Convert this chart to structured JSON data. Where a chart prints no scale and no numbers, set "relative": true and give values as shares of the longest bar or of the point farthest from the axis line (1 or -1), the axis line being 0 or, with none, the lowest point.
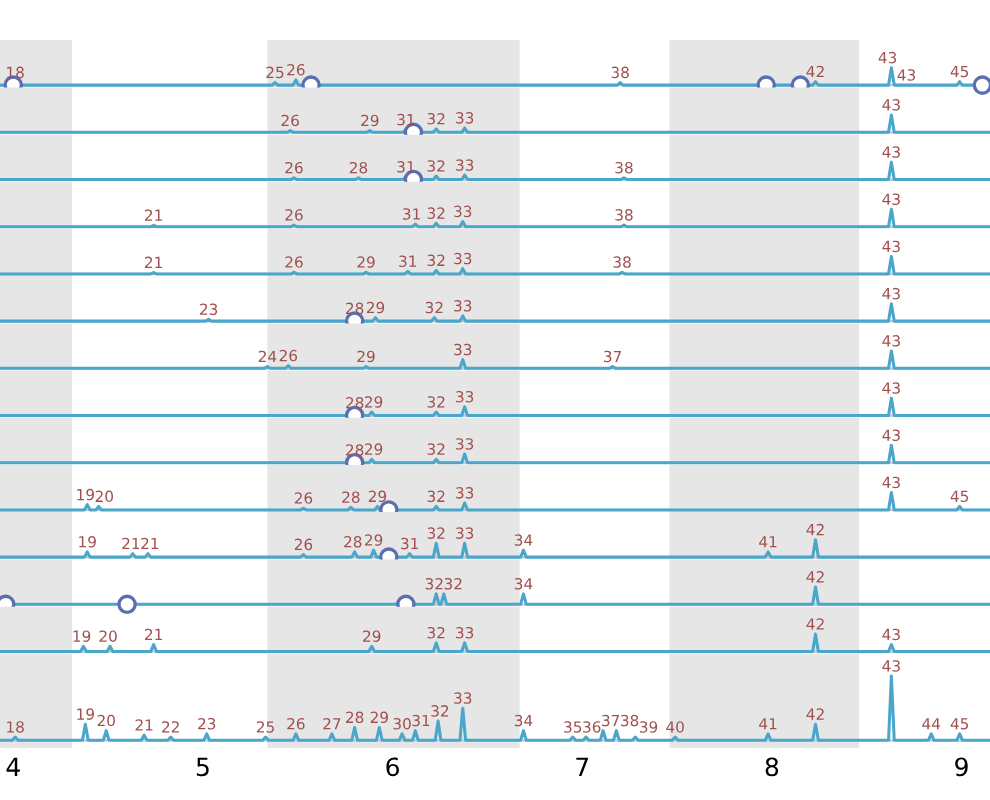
{
  "chart_data": [
    {
      "type": "line",
      "relative": true,
      "tick_labels": false,
      "xlim": [
        3.93,
        9.15
      ],
      "xticks": [
        4,
        5,
        6,
        7,
        8,
        9
      ],
      "bands": [
        {
          "axis": "x",
          "from": 3.93,
          "to": 4.31,
          "color": "#e6e6e6"
        },
        {
          "axis": "x",
          "from": 5.34,
          "to": 6.67,
          "color": "#e6e6e6"
        },
        {
          "axis": "x",
          "from": 7.46,
          "to": 8.46,
          "color": "#e6e6e6"
        }
      ],
      "series": [
        {
          "type": "line",
          "color": "#4ba6cc",
          "x": [
            3.93,
            3.985,
            4.0,
            4.015,
            5.365,
            5.38,
            5.395,
            5.475,
            5.49,
            5.505,
            7.185,
            7.2,
            7.215,
            8.215,
            8.23,
            8.245,
            8.615,
            8.63,
            8.645,
            8.975,
            8.99,
            9.005,
            9.15
          ],
          "values": [
            0,
            0,
            0.15,
            0,
            0,
            0.15,
            0,
            0,
            0.3,
            0,
            0,
            0.15,
            0,
            0,
            0.2,
            0,
            0,
            1,
            0,
            0,
            0.2,
            0,
            0
          ]
        },
        {
          "type": "scatter",
          "marker": "circle",
          "color": "#5b6eb0",
          "x": [
            4.0,
            5.57,
            7.97,
            8.15,
            9.11
          ],
          "values": [
            0,
            0,
            0,
            0,
            0
          ]
        }
      ],
      "annotations": [
        {
          "text": "18",
          "x": 4.01,
          "y": 0.15
        },
        {
          "text": "25",
          "x": 5.38,
          "y": 0.15
        },
        {
          "text": "26",
          "x": 5.49,
          "y": 0.3
        },
        {
          "text": "38",
          "x": 7.2,
          "y": 0.15
        },
        {
          "text": "42",
          "x": 8.23,
          "y": 0.2
        },
        {
          "text": "43",
          "x": 8.61,
          "y": 1
        },
        {
          "text": "43",
          "x": 8.66,
          "y": 0
        },
        {
          "text": "45",
          "x": 8.99,
          "y": 0.2
        }
      ]
    },
    {
      "type": "line",
      "relative": true,
      "tick_labels": false,
      "xlim": [
        3.93,
        9.15
      ],
      "xticks": [
        4,
        5,
        6,
        7,
        8,
        9
      ],
      "bands": [
        {
          "axis": "x",
          "from": 3.93,
          "to": 4.31,
          "color": "#e6e6e6"
        },
        {
          "axis": "x",
          "from": 5.34,
          "to": 6.67,
          "color": "#e6e6e6"
        },
        {
          "axis": "x",
          "from": 7.46,
          "to": 8.46,
          "color": "#e6e6e6"
        }
      ],
      "series": [
        {
          "type": "line",
          "color": "#4ba6cc",
          "x": [
            3.93,
            5.445,
            5.46,
            5.475,
            5.865,
            5.88,
            5.895,
            6.055,
            6.07,
            6.085,
            6.215,
            6.23,
            6.245,
            6.365,
            6.38,
            6.395,
            8.615,
            8.63,
            8.645,
            9.15
          ],
          "values": [
            0,
            0,
            0.1,
            0,
            0,
            0.1,
            0,
            0,
            0.15,
            0,
            0,
            0.2,
            0,
            0,
            0.25,
            0,
            0,
            1,
            0,
            0
          ]
        },
        {
          "type": "scatter",
          "marker": "circle",
          "color": "#5b6eb0",
          "x": [
            6.11
          ],
          "values": [
            0
          ]
        }
      ],
      "annotations": [
        {
          "text": "26",
          "x": 5.46,
          "y": 0.1
        },
        {
          "text": "29",
          "x": 5.88,
          "y": 0.1
        },
        {
          "text": "31",
          "x": 6.07,
          "y": 0.15
        },
        {
          "text": "32",
          "x": 6.23,
          "y": 0.2
        },
        {
          "text": "33",
          "x": 6.38,
          "y": 0.25
        },
        {
          "text": "43",
          "x": 8.63,
          "y": 1
        }
      ]
    },
    {
      "type": "line",
      "relative": true,
      "tick_labels": false,
      "xlim": [
        3.93,
        9.15
      ],
      "xticks": [
        4,
        5,
        6,
        7,
        8,
        9
      ],
      "bands": [
        {
          "axis": "x",
          "from": 3.93,
          "to": 4.31,
          "color": "#e6e6e6"
        },
        {
          "axis": "x",
          "from": 5.34,
          "to": 6.67,
          "color": "#e6e6e6"
        },
        {
          "axis": "x",
          "from": 7.46,
          "to": 8.46,
          "color": "#e6e6e6"
        }
      ],
      "series": [
        {
          "type": "line",
          "color": "#4ba6cc",
          "x": [
            3.93,
            5.465,
            5.48,
            5.495,
            5.805,
            5.82,
            5.835,
            6.055,
            6.07,
            6.085,
            6.215,
            6.23,
            6.245,
            6.365,
            6.38,
            6.395,
            7.205,
            7.22,
            7.235,
            8.615,
            8.63,
            8.645,
            9.15
          ],
          "values": [
            0,
            0,
            0.1,
            0,
            0,
            0.1,
            0,
            0,
            0.15,
            0,
            0,
            0.2,
            0,
            0,
            0.25,
            0,
            0,
            0.1,
            0,
            0,
            1,
            0,
            0
          ]
        },
        {
          "type": "scatter",
          "marker": "circle",
          "color": "#5b6eb0",
          "x": [
            6.11
          ],
          "values": [
            0
          ]
        }
      ],
      "annotations": [
        {
          "text": "26",
          "x": 5.48,
          "y": 0.1
        },
        {
          "text": "28",
          "x": 5.82,
          "y": 0.1
        },
        {
          "text": "31",
          "x": 6.07,
          "y": 0.15
        },
        {
          "text": "32",
          "x": 6.23,
          "y": 0.2
        },
        {
          "text": "33",
          "x": 6.38,
          "y": 0.25
        },
        {
          "text": "38",
          "x": 7.22,
          "y": 0.1
        },
        {
          "text": "43",
          "x": 8.63,
          "y": 1
        }
      ]
    },
    {
      "type": "line",
      "relative": true,
      "tick_labels": false,
      "xlim": [
        3.93,
        9.15
      ],
      "xticks": [
        4,
        5,
        6,
        7,
        8,
        9
      ],
      "bands": [
        {
          "axis": "x",
          "from": 3.93,
          "to": 4.31,
          "color": "#e6e6e6"
        },
        {
          "axis": "x",
          "from": 5.34,
          "to": 6.67,
          "color": "#e6e6e6"
        },
        {
          "axis": "x",
          "from": 7.46,
          "to": 8.46,
          "color": "#e6e6e6"
        }
      ],
      "series": [
        {
          "type": "line",
          "color": "#4ba6cc",
          "x": [
            3.93,
            4.725,
            4.74,
            4.755,
            5.465,
            5.48,
            5.495,
            6.105,
            6.12,
            6.135,
            6.215,
            6.23,
            6.245,
            6.355,
            6.37,
            6.385,
            7.205,
            7.22,
            7.235,
            8.615,
            8.63,
            8.645,
            9.15
          ],
          "values": [
            0,
            0,
            0.08,
            0,
            0,
            0.1,
            0,
            0,
            0.15,
            0,
            0,
            0.2,
            0,
            0,
            0.3,
            0,
            0,
            0.1,
            0,
            0,
            1,
            0,
            0
          ]
        }
      ],
      "annotations": [
        {
          "text": "21",
          "x": 4.74,
          "y": 0.08
        },
        {
          "text": "26",
          "x": 5.48,
          "y": 0.1
        },
        {
          "text": "31",
          "x": 6.1,
          "y": 0.15
        },
        {
          "text": "32",
          "x": 6.23,
          "y": 0.2
        },
        {
          "text": "33",
          "x": 6.37,
          "y": 0.3
        },
        {
          "text": "38",
          "x": 7.22,
          "y": 0.1
        },
        {
          "text": "43",
          "x": 8.63,
          "y": 1
        }
      ]
    },
    {
      "type": "line",
      "relative": true,
      "tick_labels": false,
      "xlim": [
        3.93,
        9.15
      ],
      "xticks": [
        4,
        5,
        6,
        7,
        8,
        9
      ],
      "bands": [
        {
          "axis": "x",
          "from": 3.93,
          "to": 4.31,
          "color": "#e6e6e6"
        },
        {
          "axis": "x",
          "from": 5.34,
          "to": 6.67,
          "color": "#e6e6e6"
        },
        {
          "axis": "x",
          "from": 7.46,
          "to": 8.46,
          "color": "#e6e6e6"
        }
      ],
      "series": [
        {
          "type": "line",
          "color": "#4ba6cc",
          "x": [
            3.93,
            4.725,
            4.74,
            4.755,
            5.465,
            5.48,
            5.495,
            5.845,
            5.86,
            5.875,
            6.065,
            6.08,
            6.095,
            6.215,
            6.23,
            6.245,
            6.355,
            6.37,
            6.385,
            7.195,
            7.21,
            7.225,
            8.615,
            8.63,
            8.645,
            9.15
          ],
          "values": [
            0,
            0,
            0.08,
            0,
            0,
            0.1,
            0,
            0,
            0.1,
            0,
            0,
            0.15,
            0,
            0,
            0.2,
            0,
            0,
            0.3,
            0,
            0,
            0.1,
            0,
            0,
            1,
            0,
            0
          ]
        }
      ],
      "annotations": [
        {
          "text": "21",
          "x": 4.74,
          "y": 0.08
        },
        {
          "text": "26",
          "x": 5.48,
          "y": 0.1
        },
        {
          "text": "29",
          "x": 5.86,
          "y": 0.1
        },
        {
          "text": "31",
          "x": 6.08,
          "y": 0.15
        },
        {
          "text": "32",
          "x": 6.23,
          "y": 0.2
        },
        {
          "text": "33",
          "x": 6.37,
          "y": 0.3
        },
        {
          "text": "38",
          "x": 7.21,
          "y": 0.1
        },
        {
          "text": "43",
          "x": 8.63,
          "y": 1
        }
      ]
    },
    {
      "type": "line",
      "relative": true,
      "tick_labels": false,
      "xlim": [
        3.93,
        9.15
      ],
      "xticks": [
        4,
        5,
        6,
        7,
        8,
        9
      ],
      "bands": [
        {
          "axis": "x",
          "from": 3.93,
          "to": 4.31,
          "color": "#e6e6e6"
        },
        {
          "axis": "x",
          "from": 5.34,
          "to": 6.67,
          "color": "#e6e6e6"
        },
        {
          "axis": "x",
          "from": 7.46,
          "to": 8.46,
          "color": "#e6e6e6"
        }
      ],
      "series": [
        {
          "type": "line",
          "color": "#4ba6cc",
          "x": [
            3.93,
            5.015,
            5.03,
            5.045,
            5.785,
            5.8,
            5.815,
            5.895,
            5.91,
            5.925,
            6.205,
            6.22,
            6.235,
            6.355,
            6.37,
            6.385,
            8.615,
            8.63,
            8.645,
            9.15
          ],
          "values": [
            0,
            0,
            0.1,
            0,
            0,
            0.15,
            0,
            0,
            0.2,
            0,
            0,
            0.2,
            0,
            0,
            0.3,
            0,
            0,
            1,
            0,
            0
          ]
        },
        {
          "type": "scatter",
          "marker": "circle",
          "color": "#5b6eb0",
          "x": [
            5.8
          ],
          "values": [
            0
          ]
        }
      ],
      "annotations": [
        {
          "text": "23",
          "x": 5.03,
          "y": 0.1
        },
        {
          "text": "28",
          "x": 5.8,
          "y": 0.15
        },
        {
          "text": "29",
          "x": 5.91,
          "y": 0.2
        },
        {
          "text": "32",
          "x": 6.22,
          "y": 0.2
        },
        {
          "text": "33",
          "x": 6.37,
          "y": 0.3
        },
        {
          "text": "43",
          "x": 8.63,
          "y": 1
        }
      ]
    },
    {
      "type": "line",
      "relative": true,
      "tick_labels": false,
      "xlim": [
        3.93,
        9.15
      ],
      "xticks": [
        4,
        5,
        6,
        7,
        8,
        9
      ],
      "bands": [
        {
          "axis": "x",
          "from": 3.93,
          "to": 4.31,
          "color": "#e6e6e6"
        },
        {
          "axis": "x",
          "from": 5.34,
          "to": 6.67,
          "color": "#e6e6e6"
        },
        {
          "axis": "x",
          "from": 7.46,
          "to": 8.46,
          "color": "#e6e6e6"
        }
      ],
      "series": [
        {
          "type": "line",
          "color": "#4ba6cc",
          "x": [
            3.93,
            5.325,
            5.34,
            5.355,
            5.435,
            5.45,
            5.465,
            5.845,
            5.86,
            5.875,
            6.355,
            6.37,
            6.385,
            7.145,
            7.16,
            7.175,
            8.615,
            8.63,
            8.645,
            9.15
          ],
          "values": [
            0,
            0,
            0.1,
            0,
            0,
            0.15,
            0,
            0,
            0.1,
            0,
            0,
            0.5,
            0,
            0,
            0.1,
            0,
            0,
            1,
            0,
            0
          ]
        }
      ],
      "annotations": [
        {
          "text": "24",
          "x": 5.34,
          "y": 0.1
        },
        {
          "text": "26",
          "x": 5.45,
          "y": 0.15
        },
        {
          "text": "29",
          "x": 5.86,
          "y": 0.1
        },
        {
          "text": "33",
          "x": 6.37,
          "y": 0.5
        },
        {
          "text": "37",
          "x": 7.16,
          "y": 0.1
        },
        {
          "text": "43",
          "x": 8.63,
          "y": 1
        }
      ]
    },
    {
      "type": "line",
      "relative": true,
      "tick_labels": false,
      "xlim": [
        3.93,
        9.15
      ],
      "xticks": [
        4,
        5,
        6,
        7,
        8,
        9
      ],
      "bands": [
        {
          "axis": "x",
          "from": 3.93,
          "to": 4.31,
          "color": "#e6e6e6"
        },
        {
          "axis": "x",
          "from": 5.34,
          "to": 6.67,
          "color": "#e6e6e6"
        },
        {
          "axis": "x",
          "from": 7.46,
          "to": 8.46,
          "color": "#e6e6e6"
        }
      ],
      "series": [
        {
          "type": "line",
          "color": "#4ba6cc",
          "x": [
            3.93,
            5.785,
            5.8,
            5.815,
            5.875,
            5.89,
            5.905,
            6.215,
            6.23,
            6.245,
            6.365,
            6.38,
            6.395,
            8.615,
            8.63,
            8.645,
            9.15
          ],
          "values": [
            0,
            0,
            0.15,
            0,
            0,
            0.2,
            0,
            0,
            0.2,
            0,
            0,
            0.5,
            0,
            0,
            1,
            0,
            0
          ]
        },
        {
          "type": "scatter",
          "marker": "circle",
          "color": "#5b6eb0",
          "x": [
            5.8
          ],
          "values": [
            0
          ]
        }
      ],
      "annotations": [
        {
          "text": "28",
          "x": 5.8,
          "y": 0.15
        },
        {
          "text": "29",
          "x": 5.89,
          "y": 0.2
        },
        {
          "text": "32",
          "x": 6.23,
          "y": 0.2
        },
        {
          "text": "33",
          "x": 6.38,
          "y": 0.5
        },
        {
          "text": "43",
          "x": 8.63,
          "y": 1
        }
      ]
    },
    {
      "type": "line",
      "relative": true,
      "tick_labels": false,
      "xlim": [
        3.93,
        9.15
      ],
      "xticks": [
        4,
        5,
        6,
        7,
        8,
        9
      ],
      "bands": [
        {
          "axis": "x",
          "from": 3.93,
          "to": 4.31,
          "color": "#e6e6e6"
        },
        {
          "axis": "x",
          "from": 5.34,
          "to": 6.67,
          "color": "#e6e6e6"
        },
        {
          "axis": "x",
          "from": 7.46,
          "to": 8.46,
          "color": "#e6e6e6"
        }
      ],
      "series": [
        {
          "type": "line",
          "color": "#4ba6cc",
          "x": [
            3.93,
            5.785,
            5.8,
            5.815,
            5.875,
            5.89,
            5.905,
            6.215,
            6.23,
            6.245,
            6.365,
            6.38,
            6.395,
            8.615,
            8.63,
            8.645,
            9.15
          ],
          "values": [
            0,
            0,
            0.15,
            0,
            0,
            0.2,
            0,
            0,
            0.2,
            0,
            0,
            0.5,
            0,
            0,
            1,
            0,
            0
          ]
        },
        {
          "type": "scatter",
          "marker": "circle",
          "color": "#5b6eb0",
          "x": [
            5.8
          ],
          "values": [
            0
          ]
        }
      ],
      "annotations": [
        {
          "text": "28",
          "x": 5.8,
          "y": 0.15
        },
        {
          "text": "29",
          "x": 5.89,
          "y": 0.2
        },
        {
          "text": "32",
          "x": 6.23,
          "y": 0.2
        },
        {
          "text": "33",
          "x": 6.38,
          "y": 0.5
        },
        {
          "text": "43",
          "x": 8.63,
          "y": 1
        }
      ]
    },
    {
      "type": "line",
      "relative": true,
      "tick_labels": false,
      "xlim": [
        3.93,
        9.15
      ],
      "xticks": [
        4,
        5,
        6,
        7,
        8,
        9
      ],
      "bands": [
        {
          "axis": "x",
          "from": 3.93,
          "to": 4.31,
          "color": "#e6e6e6"
        },
        {
          "axis": "x",
          "from": 5.34,
          "to": 6.67,
          "color": "#e6e6e6"
        },
        {
          "axis": "x",
          "from": 7.46,
          "to": 8.46,
          "color": "#e6e6e6"
        }
      ],
      "series": [
        {
          "type": "line",
          "color": "#4ba6cc",
          "x": [
            3.93,
            4.375,
            4.39,
            4.405,
            4.435,
            4.45,
            4.465,
            5.515,
            5.53,
            5.545,
            5.765,
            5.78,
            5.795,
            5.905,
            5.92,
            5.935,
            6.215,
            6.23,
            6.245,
            6.365,
            6.38,
            6.395,
            8.615,
            8.63,
            8.645,
            8.975,
            8.99,
            9.005,
            9.15
          ],
          "values": [
            0,
            0,
            0.3,
            0,
            0,
            0.2,
            0,
            0,
            0.1,
            0,
            0,
            0.15,
            0,
            0,
            0.2,
            0,
            0,
            0.2,
            0,
            0,
            0.4,
            0,
            0,
            1,
            0,
            0,
            0.2,
            0,
            0
          ]
        },
        {
          "type": "scatter",
          "marker": "circle",
          "color": "#5b6eb0",
          "x": [
            5.98
          ],
          "values": [
            0
          ]
        }
      ],
      "annotations": [
        {
          "text": "19",
          "x": 4.38,
          "y": 0.3
        },
        {
          "text": "20",
          "x": 4.46,
          "y": 0.2
        },
        {
          "text": "26",
          "x": 5.53,
          "y": 0.1
        },
        {
          "text": "28",
          "x": 5.78,
          "y": 0.15
        },
        {
          "text": "29",
          "x": 5.92,
          "y": 0.2
        },
        {
          "text": "32",
          "x": 6.23,
          "y": 0.2
        },
        {
          "text": "33",
          "x": 6.38,
          "y": 0.4
        },
        {
          "text": "43",
          "x": 8.63,
          "y": 1
        },
        {
          "text": "45",
          "x": 8.99,
          "y": 0.2
        }
      ]
    },
    {
      "type": "line",
      "relative": true,
      "tick_labels": false,
      "xlim": [
        3.93,
        9.15
      ],
      "xticks": [
        4,
        5,
        6,
        7,
        8,
        9
      ],
      "bands": [
        {
          "axis": "x",
          "from": 3.93,
          "to": 4.31,
          "color": "#e6e6e6"
        },
        {
          "axis": "x",
          "from": 5.34,
          "to": 6.67,
          "color": "#e6e6e6"
        },
        {
          "axis": "x",
          "from": 7.46,
          "to": 8.46,
          "color": "#e6e6e6"
        }
      ],
      "series": [
        {
          "type": "line",
          "color": "#4ba6cc",
          "x": [
            3.93,
            4.375,
            4.39,
            4.405,
            4.615,
            4.63,
            4.645,
            4.695,
            4.71,
            4.725,
            5.515,
            5.53,
            5.545,
            5.785,
            5.8,
            5.815,
            5.885,
            5.9,
            5.915,
            6.075,
            6.09,
            6.105,
            6.215,
            6.23,
            6.245,
            6.365,
            6.38,
            6.395,
            6.675,
            6.69,
            6.705,
            7.965,
            7.98,
            7.995,
            8.215,
            8.23,
            8.245,
            9.15
          ],
          "values": [
            0,
            0,
            0.3,
            0,
            0,
            0.2,
            0,
            0,
            0.2,
            0,
            0,
            0.15,
            0,
            0,
            0.3,
            0,
            0,
            0.4,
            0,
            0,
            0.2,
            0,
            0,
            0.8,
            0,
            0,
            0.8,
            0,
            0,
            0.4,
            0,
            0,
            0.3,
            0,
            0,
            1,
            0,
            0
          ]
        },
        {
          "type": "scatter",
          "marker": "circle",
          "color": "#5b6eb0",
          "x": [
            5.98
          ],
          "values": [
            0
          ]
        }
      ],
      "annotations": [
        {
          "text": "19",
          "x": 4.39,
          "y": 0.3
        },
        {
          "text": "21",
          "x": 4.62,
          "y": 0.2
        },
        {
          "text": "21",
          "x": 4.72,
          "y": 0.2
        },
        {
          "text": "26",
          "x": 5.53,
          "y": 0.15
        },
        {
          "text": "28",
          "x": 5.79,
          "y": 0.3
        },
        {
          "text": "29",
          "x": 5.9,
          "y": 0.4
        },
        {
          "text": "31",
          "x": 6.09,
          "y": 0.2
        },
        {
          "text": "32",
          "x": 6.23,
          "y": 0.8
        },
        {
          "text": "33",
          "x": 6.38,
          "y": 0.8
        },
        {
          "text": "34",
          "x": 6.69,
          "y": 0.4
        },
        {
          "text": "41",
          "x": 7.98,
          "y": 0.3
        },
        {
          "text": "42",
          "x": 8.23,
          "y": 1
        }
      ]
    },
    {
      "type": "line",
      "relative": true,
      "tick_labels": false,
      "xlim": [
        3.93,
        9.15
      ],
      "xticks": [
        4,
        5,
        6,
        7,
        8,
        9
      ],
      "bands": [
        {
          "axis": "x",
          "from": 3.93,
          "to": 4.31,
          "color": "#e6e6e6"
        },
        {
          "axis": "x",
          "from": 5.34,
          "to": 6.67,
          "color": "#e6e6e6"
        },
        {
          "axis": "x",
          "from": 7.46,
          "to": 8.46,
          "color": "#e6e6e6"
        }
      ],
      "series": [
        {
          "type": "line",
          "color": "#4ba6cc",
          "x": [
            3.93,
            6.215,
            6.23,
            6.245,
            6.255,
            6.27,
            6.285,
            6.675,
            6.69,
            6.705,
            8.215,
            8.23,
            8.245,
            9.15
          ],
          "values": [
            0,
            0,
            0.6,
            0,
            0,
            0.6,
            0,
            0,
            0.6,
            0,
            0,
            1,
            0,
            0
          ]
        },
        {
          "type": "scatter",
          "marker": "circle",
          "color": "#5b6eb0",
          "x": [
            3.96,
            4.6,
            6.07
          ],
          "values": [
            0,
            0,
            0
          ]
        }
      ],
      "annotations": [
        {
          "text": "32",
          "x": 6.22,
          "y": 0.6
        },
        {
          "text": "32",
          "x": 6.28,
          "y": 0.6
        },
        {
          "text": "34",
          "x": 6.69,
          "y": 0.6
        },
        {
          "text": "42",
          "x": 8.23,
          "y": 1
        }
      ]
    },
    {
      "type": "line",
      "relative": true,
      "tick_labels": false,
      "xlim": [
        3.93,
        9.15
      ],
      "xticks": [
        4,
        5,
        6,
        7,
        8,
        9
      ],
      "bands": [
        {
          "axis": "x",
          "from": 3.93,
          "to": 4.31,
          "color": "#e6e6e6"
        },
        {
          "axis": "x",
          "from": 5.34,
          "to": 6.67,
          "color": "#e6e6e6"
        },
        {
          "axis": "x",
          "from": 7.46,
          "to": 8.46,
          "color": "#e6e6e6"
        }
      ],
      "series": [
        {
          "type": "line",
          "color": "#4ba6cc",
          "x": [
            3.93,
            4.355,
            4.37,
            4.385,
            4.495,
            4.51,
            4.525,
            4.725,
            4.74,
            4.755,
            5.875,
            5.89,
            5.905,
            6.215,
            6.23,
            6.245,
            6.365,
            6.38,
            6.395,
            8.215,
            8.23,
            8.245,
            8.615,
            8.63,
            8.645,
            9.15
          ],
          "values": [
            0,
            0,
            0.3,
            0,
            0,
            0.3,
            0,
            0,
            0.4,
            0,
            0,
            0.3,
            0,
            0,
            0.5,
            0,
            0,
            0.5,
            0,
            0,
            1,
            0,
            0,
            0.4,
            0,
            0
          ]
        }
      ],
      "annotations": [
        {
          "text": "19",
          "x": 4.36,
          "y": 0.3
        },
        {
          "text": "20",
          "x": 4.5,
          "y": 0.3
        },
        {
          "text": "21",
          "x": 4.74,
          "y": 0.4
        },
        {
          "text": "29",
          "x": 5.89,
          "y": 0.3
        },
        {
          "text": "32",
          "x": 6.23,
          "y": 0.5
        },
        {
          "text": "33",
          "x": 6.38,
          "y": 0.5
        },
        {
          "text": "42",
          "x": 8.23,
          "y": 1
        },
        {
          "text": "43",
          "x": 8.63,
          "y": 0.4
        }
      ]
    },
    {
      "type": "line",
      "relative": true,
      "tick_labels": "x",
      "xlim": [
        3.93,
        9.15
      ],
      "xticks": [
        4,
        5,
        6,
        7,
        8,
        9
      ],
      "bands": [
        {
          "axis": "x",
          "from": 3.93,
          "to": 4.31,
          "color": "#e6e6e6"
        },
        {
          "axis": "x",
          "from": 5.34,
          "to": 6.67,
          "color": "#e6e6e6"
        },
        {
          "axis": "x",
          "from": 7.46,
          "to": 8.46,
          "color": "#e6e6e6"
        }
      ],
      "series": [
        {
          "type": "line",
          "color": "#4ba6cc",
          "x": [
            3.93,
            3.995,
            4.01,
            4.025,
            4.365,
            4.38,
            4.395,
            4.475,
            4.49,
            4.505,
            4.675,
            4.69,
            4.705,
            4.815,
            4.83,
            4.845,
            5.005,
            5.02,
            5.035,
            5.315,
            5.33,
            5.345,
            5.475,
            5.49,
            5.505,
            5.665,
            5.68,
            5.695,
            5.785,
            5.8,
            5.815,
            5.915,
            5.93,
            5.945,
            6.035,
            6.05,
            6.065,
            6.105,
            6.12,
            6.135,
            6.225,
            6.24,
            6.255,
            6.355,
            6.37,
            6.385,
            6.675,
            6.69,
            6.705,
            6.935,
            6.95,
            6.965,
            7.005,
            7.02,
            7.035,
            7.095,
            7.11,
            7.125,
            7.165,
            7.18,
            7.195,
            7.265,
            7.28,
            7.295,
            7.475,
            7.49,
            7.505,
            7.965,
            7.98,
            7.995,
            8.215,
            8.23,
            8.245,
            8.615,
            8.63,
            8.645,
            8.825,
            8.84,
            8.855,
            8.975,
            8.99,
            9.005,
            9.15
          ],
          "values": [
            0,
            0,
            0.05,
            0,
            0,
            0.25,
            0,
            0,
            0.15,
            0,
            0,
            0.08,
            0,
            0,
            0.05,
            0,
            0,
            0.1,
            0,
            0,
            0.05,
            0,
            0,
            0.1,
            0,
            0,
            0.1,
            0,
            0,
            0.2,
            0,
            0,
            0.2,
            0,
            0,
            0.1,
            0,
            0,
            0.15,
            0,
            0,
            0.3,
            0,
            0,
            0.5,
            0,
            0,
            0.15,
            0,
            0,
            0.05,
            0,
            0,
            0.05,
            0,
            0,
            0.15,
            0,
            0,
            0.15,
            0,
            0,
            0.05,
            0,
            0,
            0.05,
            0,
            0,
            0.1,
            0,
            0,
            0.25,
            0,
            0,
            1,
            0,
            0,
            0.1,
            0,
            0,
            0.1,
            0,
            0
          ]
        }
      ],
      "annotations": [
        {
          "text": "18",
          "x": 4.01,
          "y": 0.05
        },
        {
          "text": "19",
          "x": 4.38,
          "y": 0.25
        },
        {
          "text": "20",
          "x": 4.49,
          "y": 0.15
        },
        {
          "text": "21",
          "x": 4.69,
          "y": 0.08
        },
        {
          "text": "22",
          "x": 4.83,
          "y": 0.05
        },
        {
          "text": "23",
          "x": 5.02,
          "y": 0.1
        },
        {
          "text": "25",
          "x": 5.33,
          "y": 0.05
        },
        {
          "text": "26",
          "x": 5.49,
          "y": 0.1
        },
        {
          "text": "27",
          "x": 5.68,
          "y": 0.1
        },
        {
          "text": "28",
          "x": 5.8,
          "y": 0.2
        },
        {
          "text": "29",
          "x": 5.93,
          "y": 0.2
        },
        {
          "text": "30",
          "x": 6.05,
          "y": 0.1
        },
        {
          "text": "31",
          "x": 6.12,
          "y": 0.15
        },
        {
          "text": "32",
          "x": 6.24,
          "y": 0.3
        },
        {
          "text": "33",
          "x": 6.37,
          "y": 0.5
        },
        {
          "text": "34",
          "x": 6.69,
          "y": 0.15
        },
        {
          "text": "35",
          "x": 6.95,
          "y": 0.05
        },
        {
          "text": "36",
          "x": 7.02,
          "y": 0.05
        },
        {
          "text": "37",
          "x": 7.11,
          "y": 0.15
        },
        {
          "text": "38",
          "x": 7.18,
          "y": 0.15
        },
        {
          "text": "39",
          "x": 7.28,
          "y": 0.05
        },
        {
          "text": "40",
          "x": 7.49,
          "y": 0.05
        },
        {
          "text": "41",
          "x": 7.98,
          "y": 0.1
        },
        {
          "text": "42",
          "x": 8.23,
          "y": 0.25
        },
        {
          "text": "43",
          "x": 8.63,
          "y": 1
        },
        {
          "text": "44",
          "x": 8.84,
          "y": 0.1
        },
        {
          "text": "45",
          "x": 8.99,
          "y": 0.1
        }
      ]
    }
  ]
}
